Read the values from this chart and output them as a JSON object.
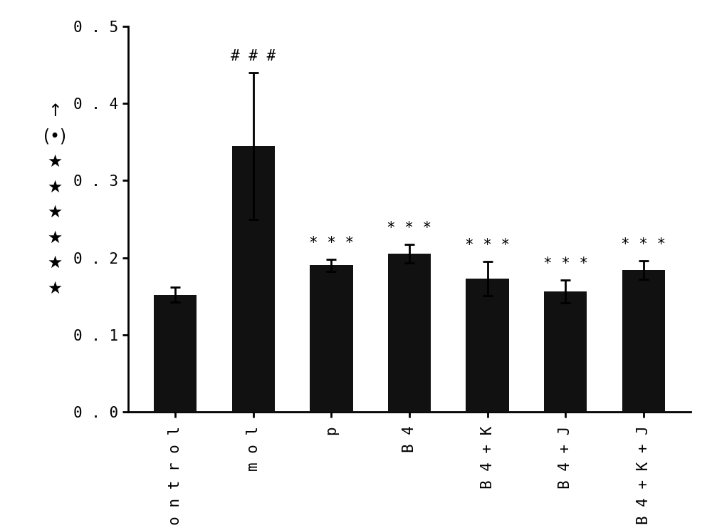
{
  "categories": [
    "c o n t r o l",
    "m o l",
    "p",
    "B 4",
    "B 4 + K",
    "B 4 + J",
    "B 4 + K + J"
  ],
  "values": [
    0.152,
    0.345,
    0.19,
    0.205,
    0.173,
    0.156,
    0.184
  ],
  "errors": [
    0.01,
    0.095,
    0.008,
    0.012,
    0.022,
    0.015,
    0.012
  ],
  "bar_color": "#111111",
  "background_color": "#ffffff",
  "ylim": [
    0.0,
    0.5
  ],
  "yticks": [
    0.0,
    0.1,
    0.2,
    0.3,
    0.4,
    0.5
  ],
  "ytick_labels": [
    "0 . 0",
    "0 . 1",
    "0 . 2",
    "0 . 3",
    "0 . 4",
    "0 . 5"
  ],
  "annotations": [
    "",
    "# # #",
    "* * *",
    "* * *",
    "* * *",
    "* * *",
    "* * *"
  ],
  "bar_width": 0.55,
  "figsize": [
    10.0,
    7.41
  ],
  "dpi": 100,
  "tick_fontsize": 15,
  "annot_fontsize": 15,
  "spine_linewidth": 2.0,
  "errorbar_linewidth": 2.0,
  "errorbar_capsize": 5,
  "ylabel_lines": [
    "↑",
    "(•)",
    "★",
    "★",
    "★",
    "★",
    "★",
    "★"
  ]
}
